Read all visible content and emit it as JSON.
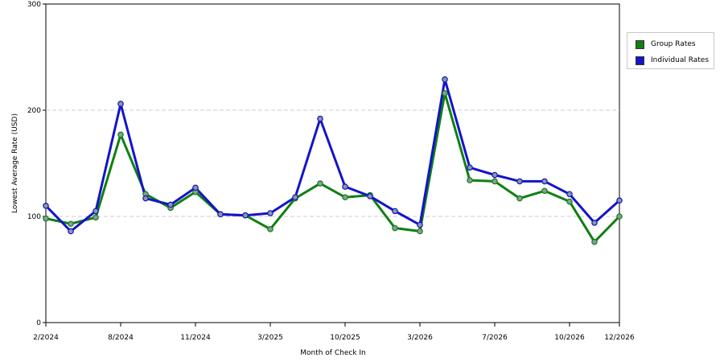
{
  "chart_data": {
    "type": "line",
    "xlabel": "Month of Check In",
    "ylabel": "Lowest Average Rate (USD)",
    "ylim": [
      0,
      300
    ],
    "yticks": [
      "0",
      "100",
      "200",
      "300"
    ],
    "x_tick_labels": [
      {
        "index": 0,
        "label": "2/2024"
      },
      {
        "index": 3,
        "label": "8/2024"
      },
      {
        "index": 6,
        "label": "11/2024"
      },
      {
        "index": 9,
        "label": "3/2025"
      },
      {
        "index": 12,
        "label": "10/2025"
      },
      {
        "index": 15,
        "label": "3/2026"
      },
      {
        "index": 18,
        "label": "7/2026"
      },
      {
        "index": 21,
        "label": "10/2026"
      },
      {
        "index": 23,
        "label": "12/2026"
      }
    ],
    "grid": true,
    "legend_position": "top-right",
    "series": [
      {
        "name": "Group Rates",
        "color": "#108010",
        "values": [
          98,
          93,
          99,
          177,
          121,
          108,
          123,
          102,
          101,
          88,
          117,
          131,
          118,
          120,
          89,
          86,
          216,
          134,
          133,
          117,
          124,
          114,
          76,
          100
        ]
      },
      {
        "name": "Individual Rates",
        "color": "#1414c8",
        "values": [
          110,
          86,
          105,
          206,
          117,
          111,
          127,
          102,
          101,
          103,
          118,
          192,
          128,
          119,
          105,
          92,
          229,
          146,
          139,
          133,
          133,
          121,
          94,
          115
        ]
      }
    ]
  }
}
